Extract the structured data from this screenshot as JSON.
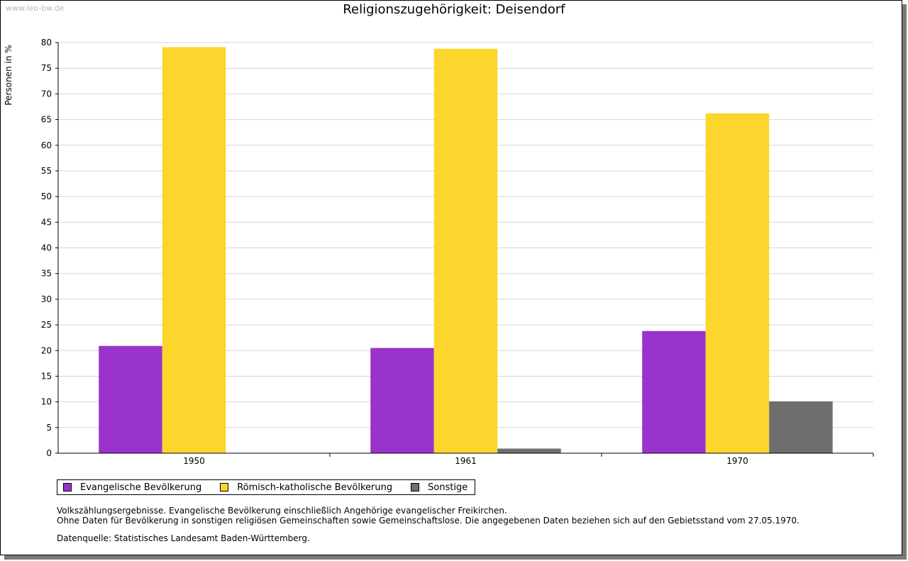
{
  "watermark": "www.leo-bw.de",
  "colors": {
    "evangelisch": "#9933cc",
    "katholisch": "#fcd52d",
    "sonstige": "#6e6e6e",
    "grid": "#d6d6d6",
    "axis": "#000000"
  },
  "notes": {
    "line1": "Volkszählungsergebnisse. Evangelische Bevölkerung einschließlich Angehörige evangelischer Freikirchen.",
    "line2": "Ohne Daten für Bevölkerung in sonstigen religiösen Gemeinschaften sowie Gemeinschaftslose. Die angegebenen Daten beziehen sich auf den Gebietsstand vom 27.05.1970.",
    "source": "Datenquelle: Statistisches Landesamt Baden-Württemberg."
  },
  "chart_data": {
    "type": "bar",
    "title": "Religionszugehörigkeit: Deisendorf",
    "xlabel": "",
    "ylabel": "Personen in %",
    "ylim": [
      0,
      80
    ],
    "yticks": [
      0,
      5,
      10,
      15,
      20,
      25,
      30,
      35,
      40,
      45,
      50,
      55,
      60,
      65,
      70,
      75,
      80
    ],
    "grid": true,
    "legend_position": "bottom-left",
    "categories": [
      "1950",
      "1961",
      "1970"
    ],
    "series": [
      {
        "name": "Evangelische Bevölkerung",
        "color": "#9933cc",
        "values": [
          20.9,
          20.5,
          23.8
        ]
      },
      {
        "name": "Römisch-katholische Bevölkerung",
        "color": "#fcd52d",
        "values": [
          79.1,
          78.8,
          66.2
        ]
      },
      {
        "name": "Sonstige",
        "color": "#6e6e6e",
        "values": [
          0,
          0.9,
          10.1
        ]
      }
    ]
  }
}
